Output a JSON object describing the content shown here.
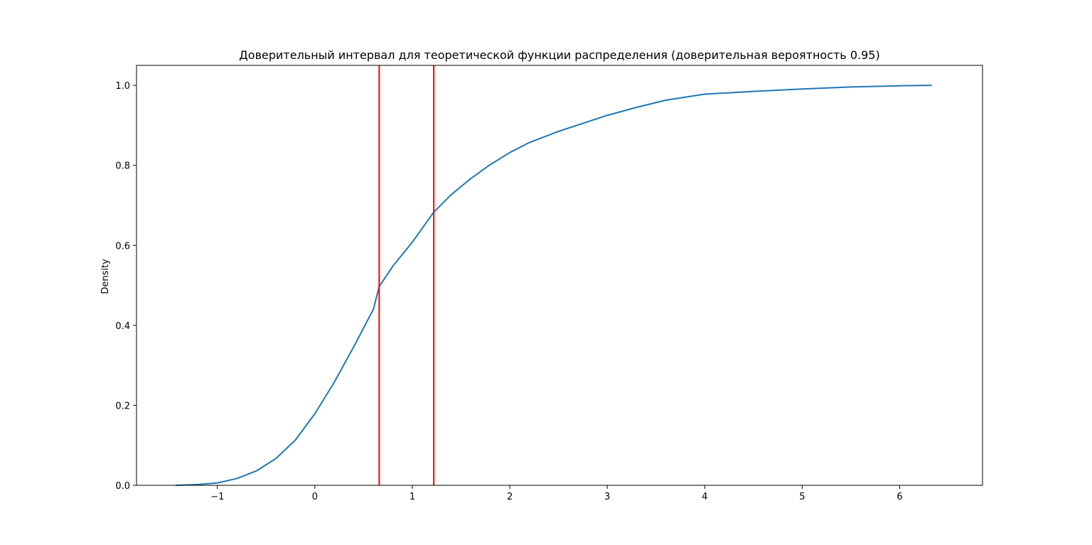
{
  "chart_data": {
    "type": "line",
    "title": "Доверительный интервал для теоретической функции распределения (доверительная вероятность 0.95)",
    "xlabel": "",
    "ylabel": "Density",
    "xlim": [
      -1.83,
      6.85
    ],
    "ylim": [
      0,
      1.05
    ],
    "x_ticks": [
      -1,
      0,
      1,
      2,
      3,
      4,
      5,
      6
    ],
    "x_tick_labels": [
      "−1",
      "0",
      "1",
      "2",
      "3",
      "4",
      "5",
      "6"
    ],
    "y_ticks": [
      0,
      0.2,
      0.4,
      0.6,
      0.8,
      1.0
    ],
    "y_tick_labels": [
      "0.0",
      "0.2",
      "0.4",
      "0.6",
      "0.8",
      "1.0"
    ],
    "grid": false,
    "series": [
      {
        "color": "#1f77b4",
        "points": [
          [
            -1.43,
            0.0
          ],
          [
            -1.2,
            0.002
          ],
          [
            -1.0,
            0.006
          ],
          [
            -0.8,
            0.017
          ],
          [
            -0.6,
            0.036
          ],
          [
            -0.4,
            0.067
          ],
          [
            -0.2,
            0.113
          ],
          [
            0.0,
            0.179
          ],
          [
            0.2,
            0.258
          ],
          [
            0.4,
            0.347
          ],
          [
            0.6,
            0.44
          ],
          [
            0.66,
            0.497
          ],
          [
            0.8,
            0.548
          ],
          [
            1.0,
            0.608
          ],
          [
            1.22,
            0.683
          ],
          [
            1.4,
            0.727
          ],
          [
            1.6,
            0.767
          ],
          [
            1.8,
            0.802
          ],
          [
            2.0,
            0.832
          ],
          [
            2.2,
            0.857
          ],
          [
            2.5,
            0.885
          ],
          [
            2.8,
            0.909
          ],
          [
            3.0,
            0.925
          ],
          [
            3.3,
            0.945
          ],
          [
            3.6,
            0.963
          ],
          [
            4.0,
            0.978
          ],
          [
            4.5,
            0.985
          ],
          [
            5.0,
            0.991
          ],
          [
            5.5,
            0.996
          ],
          [
            6.0,
            0.999
          ],
          [
            6.33,
            1.0
          ]
        ]
      }
    ],
    "vlines": [
      {
        "x": 0.66,
        "color": "#ff0000"
      },
      {
        "x": 1.22,
        "color": "#ff0000"
      }
    ]
  }
}
